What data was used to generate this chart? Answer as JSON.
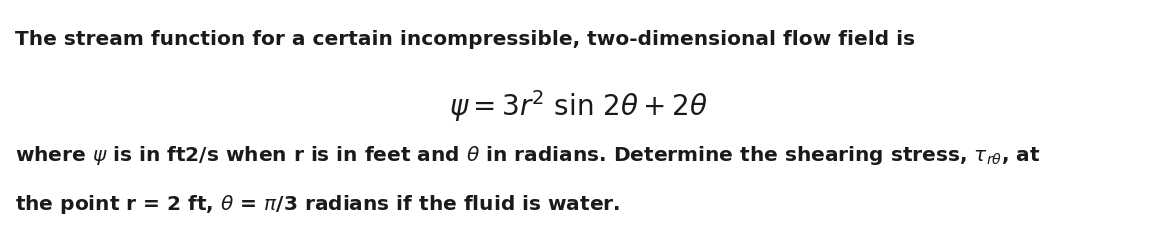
{
  "line1": "The stream function for a certain incompressible, two-dimensional flow field is",
  "line3": "where $\\psi$ is in ft2/s when r is in feet and $\\theta$ in radians. Determine the shearing stress, $\\tau_{r\\theta}$, at",
  "line4": "the point r = 2 ft, $\\theta$ = $\\pi$/3 radians if the fluid is water.",
  "bg_color": "#ffffff",
  "text_color": "#1a1a1a",
  "fontsize_body": 14.5,
  "fontsize_equation": 20,
  "fig_width": 11.57,
  "fig_height": 2.32,
  "dpi": 100
}
